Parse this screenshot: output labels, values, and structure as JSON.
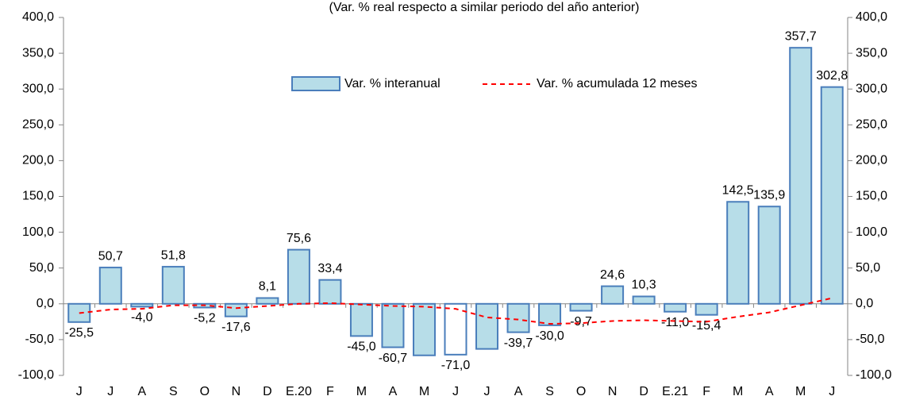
{
  "chart_data": {
    "type": "bar",
    "subtitle": "(Var. % real respecto a similar periodo del año anterior)",
    "categories": [
      "J",
      "J",
      "A",
      "S",
      "O",
      "N",
      "D",
      "E.20",
      "F",
      "M",
      "A",
      "M",
      "J",
      "J",
      "A",
      "S",
      "O",
      "N",
      "D",
      "E.21",
      "F",
      "M",
      "A",
      "M",
      "J"
    ],
    "series": [
      {
        "name": "Var. % interanual",
        "type": "bar",
        "color": "#b7dde8",
        "edge_color": "#4a7ebb",
        "values": [
          -25.5,
          50.7,
          -4.0,
          51.8,
          -5.2,
          -17.6,
          8.1,
          75.6,
          33.4,
          -45.0,
          -60.7,
          -72.0,
          -71.0,
          -63.0,
          -39.7,
          -30.0,
          -9.7,
          24.6,
          10.3,
          -11.0,
          -15.4,
          142.5,
          135.9,
          357.7,
          302.8
        ],
        "value_labels": [
          "-25,5",
          "50,7",
          "-4,0",
          "51,8",
          "-5,2",
          "-17,6",
          "8,1",
          "75,6",
          "33,4",
          "-45,0",
          "-60,7",
          null,
          "-71,0",
          null,
          "-39,7",
          "-30,0",
          "-9,7",
          "24,6",
          "10,3",
          "-11,0",
          "-15,4",
          "142,5",
          "135,9",
          "357,7",
          "302,8"
        ],
        "bar_colors": [
          "#b7dde8",
          "#b7dde8",
          "#b7dde8",
          "#b7dde8",
          "#b7dde8",
          "#b7dde8",
          "#b7dde8",
          "#b7dde8",
          "#b7dde8",
          "#b7dde8",
          "#b7dde8",
          "#b7dde8",
          "#ffffff",
          "#b7dde8",
          "#b7dde8",
          "#b7dde8",
          "#b7dde8",
          "#b7dde8",
          "#b7dde8",
          "#b7dde8",
          "#b7dde8",
          "#b7dde8",
          "#b7dde8",
          "#b7dde8",
          "#b7dde8"
        ]
      },
      {
        "name": "Var. % acumulada 12 meses",
        "type": "line",
        "color": "#ff0000",
        "dashed": true,
        "values": [
          -13,
          -8,
          -7,
          -2,
          -2,
          -6,
          -3,
          0,
          1,
          -1,
          -3,
          -4,
          -7,
          -19,
          -22,
          -28,
          -27,
          -24,
          -23,
          -24,
          -25,
          -18,
          -12,
          -2,
          8
        ]
      }
    ],
    "ylim": [
      -100,
      400
    ],
    "yticks": [
      {
        "value": -100,
        "label": "-100,0"
      },
      {
        "value": -50,
        "label": "-50,0"
      },
      {
        "value": 0,
        "label": "0,0"
      },
      {
        "value": 50,
        "label": "50,0"
      },
      {
        "value": 100,
        "label": "100,0"
      },
      {
        "value": 150,
        "label": "150,0"
      },
      {
        "value": 200,
        "label": "200,0"
      },
      {
        "value": 250,
        "label": "250,0"
      },
      {
        "value": 300,
        "label": "300,0"
      },
      {
        "value": 350,
        "label": "350,0"
      },
      {
        "value": 400,
        "label": "400,0"
      }
    ],
    "y2lim": [
      -100,
      400
    ],
    "y2ticks": [
      {
        "value": -100,
        "label": "-100,0"
      },
      {
        "value": -50,
        "label": "-50,0"
      },
      {
        "value": 0,
        "label": "0,0"
      },
      {
        "value": 50,
        "label": "50,0"
      },
      {
        "value": 100,
        "label": "100,0"
      },
      {
        "value": 150,
        "label": "150,0"
      },
      {
        "value": 200,
        "label": "200,0"
      },
      {
        "value": 250,
        "label": "250,0"
      },
      {
        "value": 300,
        "label": "300,0"
      },
      {
        "value": 350,
        "label": "350,0"
      },
      {
        "value": 400,
        "label": "400,0"
      }
    ],
    "grid": false
  }
}
